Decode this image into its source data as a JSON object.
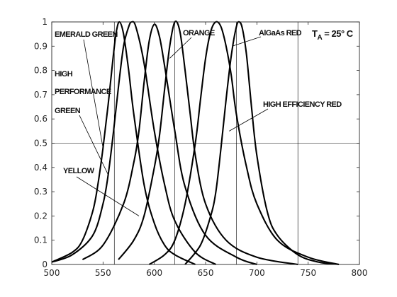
{
  "chart_data": {
    "type": "line",
    "title": "",
    "xlabel": "",
    "ylabel": "",
    "xlim": [
      500,
      800
    ],
    "ylim": [
      0,
      1
    ],
    "x_ticks": [
      "500",
      "550",
      "600",
      "650",
      "700",
      "750",
      "800"
    ],
    "y_ticks": [
      "0",
      "0.1",
      "0.2",
      "0.3",
      "0.4",
      "0.5",
      "0.6",
      "0.7",
      "0.8",
      "0.9",
      "1"
    ],
    "grid": false,
    "reference_lines": {
      "horizontal": [
        0.5
      ],
      "vertical": [
        561,
        620,
        680,
        740
      ]
    },
    "series": [
      {
        "name": "EMERALD GREEN",
        "x": [
          500,
          520,
          530,
          540,
          545,
          550,
          555,
          560,
          563,
          566,
          570,
          575,
          580,
          590,
          600,
          610,
          620,
          640
        ],
        "y": [
          0.01,
          0.05,
          0.1,
          0.22,
          0.33,
          0.48,
          0.66,
          0.86,
          0.96,
          1.0,
          0.95,
          0.8,
          0.62,
          0.33,
          0.17,
          0.08,
          0.04,
          0.0
        ]
      },
      {
        "name": "HIGH PERFORMANCE GREEN",
        "x": [
          500,
          520,
          540,
          550,
          555,
          560,
          565,
          570,
          575,
          578,
          582,
          590,
          600,
          610,
          620,
          640,
          660
        ],
        "y": [
          0.01,
          0.04,
          0.12,
          0.25,
          0.37,
          0.54,
          0.73,
          0.9,
          0.98,
          1.0,
          0.98,
          0.83,
          0.55,
          0.33,
          0.18,
          0.05,
          0.0
        ]
      },
      {
        "name": "YELLOW",
        "x": [
          530,
          550,
          570,
          580,
          585,
          590,
          595,
          600,
          605,
          610,
          620,
          630,
          650,
          680,
          700
        ],
        "y": [
          0.02,
          0.08,
          0.25,
          0.42,
          0.55,
          0.75,
          0.92,
          0.99,
          0.94,
          0.82,
          0.55,
          0.32,
          0.12,
          0.03,
          0.0
        ]
      },
      {
        "name": "ORANGE",
        "x": [
          565,
          580,
          590,
          600,
          605,
          610,
          615,
          620,
          625,
          630,
          635,
          640,
          650,
          670,
          700,
          740
        ],
        "y": [
          0.02,
          0.1,
          0.2,
          0.4,
          0.53,
          0.72,
          0.9,
          1.0,
          0.96,
          0.8,
          0.62,
          0.45,
          0.25,
          0.1,
          0.03,
          0.0
        ]
      },
      {
        "name": "HIGH EFFICIENCY RED",
        "x": [
          595,
          610,
          620,
          630,
          640,
          645,
          650,
          655,
          660,
          665,
          670,
          675,
          680,
          690,
          700,
          720,
          750,
          780
        ],
        "y": [
          0.0,
          0.04,
          0.1,
          0.25,
          0.5,
          0.68,
          0.85,
          0.96,
          1.0,
          0.98,
          0.9,
          0.78,
          0.62,
          0.4,
          0.25,
          0.1,
          0.03,
          0.0
        ]
      },
      {
        "name": "AlGaAs RED",
        "x": [
          630,
          645,
          655,
          660,
          665,
          670,
          675,
          680,
          683,
          686,
          690,
          695,
          700,
          710,
          720,
          740,
          760,
          780
        ],
        "y": [
          0.0,
          0.08,
          0.2,
          0.3,
          0.48,
          0.68,
          0.86,
          0.98,
          1.0,
          0.97,
          0.86,
          0.64,
          0.45,
          0.22,
          0.12,
          0.04,
          0.01,
          0.0
        ]
      }
    ],
    "annotations": {
      "emerald_green": "EMERALD GREEN",
      "hp_line1": "HIGH",
      "hp_line2": "PERFORMANCE",
      "hp_line3": "GREEN",
      "yellow": "YELLOW",
      "orange": "ORANGE",
      "algaas_red": "AlGaAs RED",
      "high_efficiency_red": "HIGH EFFICIENCY RED",
      "temp_label": "T",
      "temp_sub": "A",
      "temp_value": " = 25° C"
    }
  }
}
